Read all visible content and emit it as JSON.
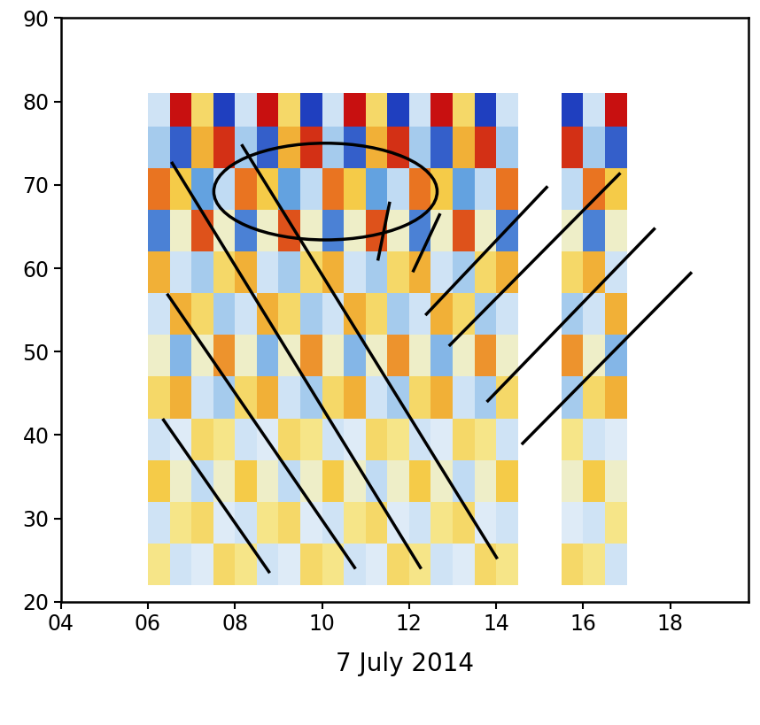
{
  "chart_data": {
    "type": "heatmap",
    "xlabel": "7 July 2014",
    "xlim": [
      4,
      19.8
    ],
    "xticks": [
      {
        "value": 4,
        "label": "04"
      },
      {
        "value": 6,
        "label": "06"
      },
      {
        "value": 8,
        "label": "08"
      },
      {
        "value": 10,
        "label": "10"
      },
      {
        "value": 12,
        "label": "12"
      },
      {
        "value": 14,
        "label": "14"
      },
      {
        "value": 16,
        "label": "16"
      },
      {
        "value": 18,
        "label": "18"
      }
    ],
    "ylim": [
      20,
      90
    ],
    "yticks": [
      20,
      30,
      40,
      50,
      60,
      70,
      80,
      90
    ],
    "cells": {
      "x_edges": [
        6.0,
        6.5,
        7.0,
        7.5,
        8.0,
        8.5,
        9.0,
        9.5,
        10.0,
        10.5,
        11.0,
        11.5,
        12.0,
        12.5,
        13.0,
        13.5,
        14.0,
        14.5,
        15.0,
        15.5,
        16.0,
        16.5,
        17.0
      ],
      "y_edges": [
        22,
        27,
        32,
        37,
        42,
        47,
        52,
        57,
        62,
        67,
        72,
        77,
        81
      ],
      "range": [
        -1,
        1
      ],
      "values": [
        [
          0.2,
          -0.3,
          -0.2,
          0.3,
          0.2,
          -0.3,
          -0.2,
          0.3,
          0.2,
          -0.3,
          -0.2,
          0.3,
          0.2,
          -0.3,
          -0.2,
          0.3,
          0.2,
          null,
          null,
          0.3,
          0.2,
          -0.3
        ],
        [
          -0.3,
          0.2,
          0.3,
          -0.2,
          -0.3,
          0.2,
          0.3,
          -0.2,
          -0.3,
          0.2,
          0.3,
          -0.2,
          -0.3,
          0.2,
          0.3,
          -0.2,
          -0.3,
          null,
          null,
          -0.2,
          -0.3,
          0.2
        ],
        [
          0.4,
          0,
          -0.4,
          0,
          0.4,
          0,
          -0.4,
          0,
          0.4,
          0,
          -0.4,
          0,
          0.4,
          0,
          -0.4,
          0,
          0.4,
          null,
          null,
          0,
          0.4,
          0
        ],
        [
          -0.3,
          -0.2,
          0.3,
          0.2,
          -0.3,
          -0.2,
          0.3,
          0.2,
          -0.3,
          -0.2,
          0.3,
          0.2,
          -0.3,
          -0.2,
          0.3,
          0.2,
          -0.3,
          null,
          null,
          0.2,
          -0.3,
          -0.2
        ],
        [
          0.3,
          0.5,
          -0.3,
          -0.5,
          0.3,
          0.5,
          -0.3,
          -0.5,
          0.3,
          0.5,
          -0.3,
          -0.5,
          0.3,
          0.5,
          -0.3,
          -0.5,
          0.3,
          null,
          null,
          -0.5,
          0.3,
          0.5
        ],
        [
          0,
          -0.6,
          0,
          0.6,
          0,
          -0.6,
          0,
          0.6,
          0,
          -0.6,
          0,
          0.6,
          0,
          -0.6,
          0,
          0.6,
          0,
          null,
          null,
          0.6,
          0,
          -0.6
        ],
        [
          -0.3,
          0.5,
          0.3,
          -0.5,
          -0.3,
          0.5,
          0.3,
          -0.5,
          -0.3,
          0.5,
          0.3,
          -0.5,
          -0.3,
          0.5,
          0.3,
          -0.5,
          -0.3,
          null,
          null,
          -0.5,
          -0.3,
          0.5
        ],
        [
          0.5,
          -0.3,
          -0.5,
          0.3,
          0.5,
          -0.3,
          -0.5,
          0.3,
          0.5,
          -0.3,
          -0.5,
          0.3,
          0.5,
          -0.3,
          -0.5,
          0.3,
          0.5,
          null,
          null,
          0.3,
          0.5,
          -0.3
        ],
        [
          -0.8,
          0,
          0.8,
          0,
          -0.8,
          0,
          0.8,
          0,
          -0.8,
          0,
          0.8,
          0,
          -0.8,
          0,
          0.8,
          0,
          -0.8,
          null,
          null,
          0,
          -0.8,
          0
        ],
        [
          0.7,
          0.4,
          -0.7,
          -0.4,
          0.7,
          0.4,
          -0.7,
          -0.4,
          0.7,
          0.4,
          -0.7,
          -0.4,
          0.7,
          0.4,
          -0.7,
          -0.4,
          0.7,
          null,
          null,
          -0.4,
          0.7,
          0.4
        ],
        [
          -0.5,
          -0.9,
          0.5,
          0.9,
          -0.5,
          -0.9,
          0.5,
          0.9,
          -0.5,
          -0.9,
          0.5,
          0.9,
          -0.5,
          -0.9,
          0.5,
          0.9,
          -0.5,
          null,
          null,
          0.9,
          -0.5,
          -0.9
        ],
        [
          -0.3,
          1.0,
          0.3,
          -1.0,
          -0.3,
          1.0,
          0.3,
          -1.0,
          -0.3,
          1.0,
          0.3,
          -1.0,
          -0.3,
          1.0,
          0.3,
          -1.0,
          -0.3,
          null,
          null,
          -1.0,
          -0.3,
          1.0
        ]
      ]
    },
    "lines": [
      [
        [
          6.36,
          41.8
        ],
        [
          8.78,
          23.6
        ]
      ],
      [
        [
          6.46,
          56.8
        ],
        [
          10.75,
          24.1
        ]
      ],
      [
        [
          6.56,
          72.6
        ],
        [
          12.26,
          24.1
        ]
      ],
      [
        [
          8.17,
          74.7
        ],
        [
          14.01,
          25.3
        ]
      ],
      [
        [
          11.29,
          61.1
        ],
        [
          11.55,
          67.8
        ]
      ],
      [
        [
          12.1,
          59.7
        ],
        [
          12.7,
          66.4
        ]
      ],
      [
        [
          12.4,
          54.5
        ],
        [
          15.16,
          69.7
        ]
      ],
      [
        [
          12.94,
          50.8
        ],
        [
          16.83,
          71.3
        ]
      ],
      [
        [
          13.81,
          44.1
        ],
        [
          17.63,
          64.7
        ]
      ],
      [
        [
          14.61,
          39.0
        ],
        [
          18.47,
          59.4
        ]
      ]
    ],
    "ellipse": {
      "center": [
        10.08,
        69.2
      ],
      "width": 5.13,
      "height": 11.6
    },
    "color": "#000000"
  }
}
